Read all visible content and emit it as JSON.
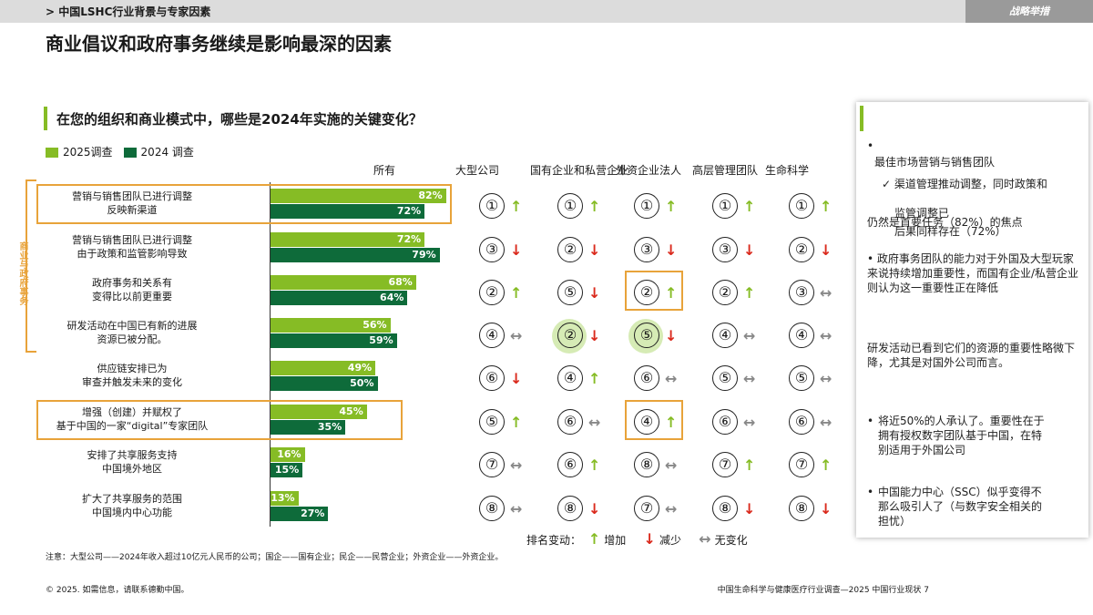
{
  "header": {
    "breadcrumb": "> 中国LSHC行业背景与专家因素",
    "tag": "战略举措",
    "main_title": "商业倡议和政府事务继续是影响最深的因素"
  },
  "chart_data": {
    "type": "bar",
    "title": "在您的组织和商业模式中，哪些是2024年实施的关键变化？",
    "xlim": [
      0,
      100
    ],
    "series": [
      {
        "name": "2025调查",
        "color": "#86bc25",
        "values": [
          82,
          72,
          68,
          56,
          49,
          45,
          16,
          13
        ]
      },
      {
        "name": "2024 调查",
        "color": "#0e6b3a",
        "values": [
          72,
          79,
          64,
          59,
          50,
          35,
          15,
          27
        ]
      }
    ],
    "categories": [
      [
        "营销与销售团队已进行调整",
        "反映新渠道"
      ],
      [
        "营销与销售团队已进行调整",
        "由于政策和监管影响导致"
      ],
      [
        "政府事务和关系有",
        "变得比以前更重要"
      ],
      [
        "研发活动在中国已有新的进展",
        "资源已被分配。"
      ],
      [
        "供应链安排已为",
        "审查并触发未来的变化"
      ],
      [
        "增强（创建）并赋权了",
        "基于中国的一家“digital”专家团队"
      ],
      [
        "安排了共享服务支持",
        "中国境外地区"
      ],
      [
        "扩大了共享服务的范围",
        "中国境内中心功能"
      ]
    ],
    "segments": [
      "所有",
      "大型公司",
      "国有企业和私营企业",
      "外资企业法人",
      "高层管理团队",
      "生命科学"
    ],
    "rankings": [
      [
        "①↑",
        "①↑",
        "①↑",
        "①↑",
        "①↑"
      ],
      [
        "③↓",
        "②↓",
        "③↓",
        "③↓",
        "②↓"
      ],
      [
        "②↑",
        "⑤↓",
        "②↑",
        "②↑",
        "③↔"
      ],
      [
        "④↔",
        "②↓",
        "⑤↓",
        "④↔",
        "④↔"
      ],
      [
        "⑥↓",
        "④↑",
        "⑥↔",
        "⑤↔",
        "⑤↔"
      ],
      [
        "⑤↑",
        "⑥↔",
        "④↑",
        "⑥↔",
        "⑥↔"
      ],
      [
        "⑦↔",
        "⑥↑",
        "⑧↔",
        "⑦↑",
        "⑦↑"
      ],
      [
        "⑧↔",
        "⑧↓",
        "⑦↔",
        "⑧↓",
        "⑧↓"
      ]
    ],
    "highlight_rows": [
      0,
      5
    ],
    "highlight_cells": [
      [
        2,
        2
      ],
      [
        5,
        2
      ]
    ],
    "halo_cells": [
      [
        3,
        1
      ],
      [
        3,
        2
      ]
    ],
    "bracket_label": "商业与政府事务"
  },
  "rank_key": {
    "label": "排名变动：",
    "up": "增加",
    "down": "减少",
    "same": "无变化",
    "up_icon": "↑",
    "down_icon": "↓",
    "same_icon": "↔"
  },
  "note": "注意：大型公司——2024年收入超过10亿元人民币的公司；国企——国有企业；民企——民营企业；外资企业——外资企业。",
  "copyright": "© 2025. 如需信息，请联系德勤中国。",
  "footer": "中国生命科学与健康医疗行业调查—2025 中国行业现状 7",
  "panel": {
    "bullet1_dot": "•",
    "bullet1_title": "最佳市场营销与销售团队",
    "bullet1_check": "✓ 渠道管理推动调整，同时政策和",
    "bullet1_overlap": "监管调整已",
    "bullet1_b": "仍然是首要任务（82%）的焦点",
    "bullet1_c": "后果同样存在（72%）",
    "bullet2": "• 政府事务团队的能力对于外国及大型玩家来说持续增加重要性，而国有企业/私营企业则认为这一重要性正在降低",
    "para3": "研发活动已看到它们的资源的重要性略微下降，尤其是对国外公司而言。",
    "bullet4": "将近50%的人承认了。重要性在于拥有授权数字团队基于中国，在特别适用于外国公司",
    "bullet5": "中国能力中心（SSC）似乎变得不那么吸引人了（与数字安全相关的担忧）"
  }
}
